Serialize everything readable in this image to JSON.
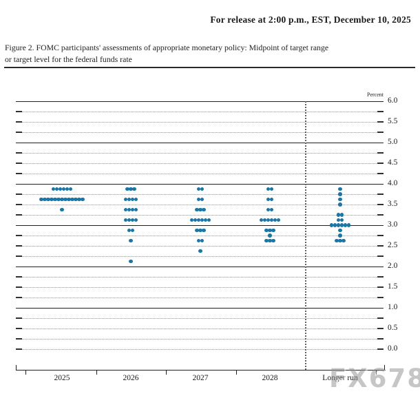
{
  "header": {
    "release_line": "For release at 2:00 p.m., EST, December 10, 2025"
  },
  "figure": {
    "caption_line1": "Figure 2. FOMC participants' assessments of appropriate monetary policy: Midpoint of target range",
    "caption_line2": "or target level for the federal funds rate"
  },
  "watermark": {
    "text": "FX678"
  },
  "chart_data": {
    "type": "scatter",
    "title": "FOMC participants' assessments of appropriate monetary policy: Midpoint of target range or target level for the federal funds rate",
    "ylabel": "Percent",
    "ylim": [
      0.0,
      6.0
    ],
    "ytick_labels": [
      "6.0",
      "5.5",
      "5.0",
      "4.5",
      "4.0",
      "3.5",
      "3.0",
      "2.5",
      "2.0",
      "1.5",
      "1.0",
      "0.5",
      "0.0"
    ],
    "ytick_step": 0.5,
    "gridline_step": 0.25,
    "solid_integer_lines": [
      6.0,
      5.0,
      4.0,
      3.0,
      2.0,
      1.0
    ],
    "grid": "dotted quarter-point gridlines with short solid end ticks; 0.0 line dotted",
    "legend_position": "none",
    "categories": [
      "2025",
      "2026",
      "2027",
      "2028",
      "Longer run"
    ],
    "separator": "vertical dotted line between 2028 and Longer run",
    "dot_color": "#1b76a6",
    "series": [
      {
        "category": "2025",
        "dots": [
          {
            "value": 3.875,
            "count": 6
          },
          {
            "value": 3.625,
            "count": 13
          },
          {
            "value": 3.375,
            "count": 1
          }
        ]
      },
      {
        "category": "2026",
        "dots": [
          {
            "value": 3.875,
            "count": 3
          },
          {
            "value": 3.625,
            "count": 4
          },
          {
            "value": 3.375,
            "count": 4
          },
          {
            "value": 3.125,
            "count": 4
          },
          {
            "value": 2.875,
            "count": 2
          },
          {
            "value": 2.625,
            "count": 1
          },
          {
            "value": 2.125,
            "count": 1
          }
        ]
      },
      {
        "category": "2027",
        "dots": [
          {
            "value": 3.875,
            "count": 2
          },
          {
            "value": 3.625,
            "count": 2
          },
          {
            "value": 3.375,
            "count": 3
          },
          {
            "value": 3.125,
            "count": 6
          },
          {
            "value": 2.875,
            "count": 3
          },
          {
            "value": 2.625,
            "count": 2
          },
          {
            "value": 2.375,
            "count": 1
          }
        ]
      },
      {
        "category": "2028",
        "dots": [
          {
            "value": 3.875,
            "count": 2
          },
          {
            "value": 3.625,
            "count": 2
          },
          {
            "value": 3.375,
            "count": 2
          },
          {
            "value": 3.125,
            "count": 6
          },
          {
            "value": 2.875,
            "count": 3
          },
          {
            "value": 2.75,
            "count": 1
          },
          {
            "value": 2.625,
            "count": 3
          }
        ]
      },
      {
        "category": "Longer run",
        "dots": [
          {
            "value": 3.875,
            "count": 1
          },
          {
            "value": 3.75,
            "count": 1
          },
          {
            "value": 3.625,
            "count": 1
          },
          {
            "value": 3.5,
            "count": 1
          },
          {
            "value": 3.25,
            "count": 2
          },
          {
            "value": 3.125,
            "count": 2
          },
          {
            "value": 3.0,
            "count": 6
          },
          {
            "value": 2.875,
            "count": 1
          },
          {
            "value": 2.75,
            "count": 1
          },
          {
            "value": 2.625,
            "count": 3
          }
        ]
      }
    ]
  }
}
